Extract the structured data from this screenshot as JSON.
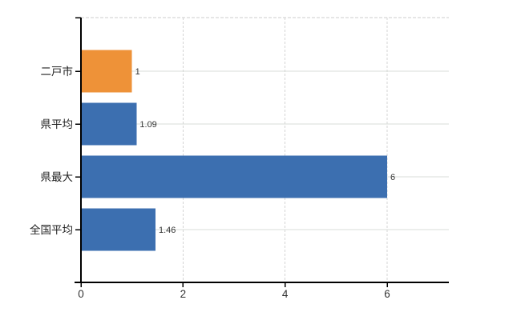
{
  "chart_data": {
    "type": "bar",
    "orientation": "horizontal",
    "title": "",
    "categories": [
      "二戸市",
      "県平均",
      "県最大",
      "全国平均"
    ],
    "values": [
      1,
      1.09,
      6,
      1.46
    ],
    "value_labels": [
      "1",
      "1.09",
      "6",
      "1.46"
    ],
    "x_ticks": [
      "0",
      "2",
      "4",
      "6"
    ],
    "x_tick_values": [
      0,
      2,
      4,
      6
    ],
    "xlim": [
      0,
      7.2
    ],
    "grid": true,
    "legend": "none",
    "colors": {
      "bars": [
        "#ee9238",
        "#3c6fb0",
        "#3c6fb0",
        "#3c6fb0"
      ],
      "h_gridline": "#d8ded8",
      "v_gridline": "#d4d4d4",
      "plot_border_top": "#cccccc",
      "axis": "#000000",
      "category_text": "#222222",
      "value_text": "#333333",
      "tick_text": "#333333"
    }
  }
}
